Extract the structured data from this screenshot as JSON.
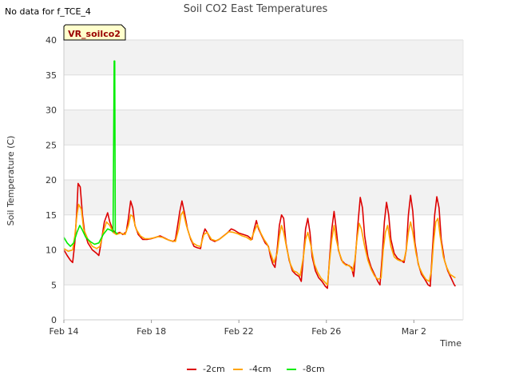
{
  "notice": "No data for f_TCE_4",
  "chart_data": {
    "type": "line",
    "title": "Soil CO2 East Temperatures",
    "xlabel": "Time",
    "ylabel": "Soil Temperature (C)",
    "ylim": [
      0,
      40
    ],
    "xlim": [
      0,
      36.5
    ],
    "yticks": [
      "0",
      "5",
      "10",
      "15",
      "20",
      "25",
      "30",
      "35",
      "40"
    ],
    "xticks": [
      {
        "x": 0,
        "label": "Feb 14"
      },
      {
        "x": 8,
        "label": "Feb 18"
      },
      {
        "x": 16,
        "label": "Feb 22"
      },
      {
        "x": 24,
        "label": "Feb 26"
      },
      {
        "x": 32,
        "label": "Mar 2"
      }
    ],
    "grid": true,
    "banded_background": true,
    "legend_position": "bottom",
    "site_label": "VR_soilco2",
    "series": [
      {
        "name": "-2cm",
        "color": "#dd0000",
        "values": [
          [
            0.0,
            10
          ],
          [
            0.3,
            9.2
          ],
          [
            0.6,
            8.5
          ],
          [
            0.8,
            8.2
          ],
          [
            1.0,
            11
          ],
          [
            1.2,
            16
          ],
          [
            1.3,
            19.5
          ],
          [
            1.5,
            19
          ],
          [
            1.7,
            15
          ],
          [
            1.9,
            12.5
          ],
          [
            2.2,
            11
          ],
          [
            2.6,
            10
          ],
          [
            3.0,
            9.5
          ],
          [
            3.2,
            9.2
          ],
          [
            3.4,
            11
          ],
          [
            3.7,
            14
          ],
          [
            4.0,
            15.3
          ],
          [
            4.2,
            14
          ],
          [
            4.5,
            12.8
          ],
          [
            4.8,
            12.3
          ],
          [
            5.1,
            12.5
          ],
          [
            5.4,
            12.2
          ],
          [
            5.7,
            12.6
          ],
          [
            5.9,
            14.5
          ],
          [
            6.1,
            17
          ],
          [
            6.3,
            16
          ],
          [
            6.5,
            13.5
          ],
          [
            6.8,
            12.2
          ],
          [
            7.2,
            11.5
          ],
          [
            7.6,
            11.5
          ],
          [
            8.0,
            11.6
          ],
          [
            8.4,
            11.8
          ],
          [
            8.8,
            12
          ],
          [
            9.2,
            11.7
          ],
          [
            9.6,
            11.4
          ],
          [
            10.0,
            11.2
          ],
          [
            10.2,
            11.5
          ],
          [
            10.4,
            13.5
          ],
          [
            10.6,
            15.5
          ],
          [
            10.8,
            17
          ],
          [
            11.0,
            15.5
          ],
          [
            11.3,
            13
          ],
          [
            11.6,
            11.5
          ],
          [
            11.9,
            10.5
          ],
          [
            12.2,
            10.3
          ],
          [
            12.5,
            10.2
          ],
          [
            12.7,
            12
          ],
          [
            12.9,
            13
          ],
          [
            13.1,
            12.5
          ],
          [
            13.4,
            11.5
          ],
          [
            13.8,
            11.2
          ],
          [
            14.2,
            11.5
          ],
          [
            14.6,
            12
          ],
          [
            15.0,
            12.5
          ],
          [
            15.3,
            13
          ],
          [
            15.6,
            12.8
          ],
          [
            16.0,
            12.4
          ],
          [
            16.4,
            12.2
          ],
          [
            16.8,
            12
          ],
          [
            17.2,
            11.5
          ],
          [
            17.4,
            13
          ],
          [
            17.6,
            14.2
          ],
          [
            17.8,
            13
          ],
          [
            18.1,
            12
          ],
          [
            18.4,
            11
          ],
          [
            18.7,
            10.5
          ],
          [
            18.9,
            9
          ],
          [
            19.1,
            8
          ],
          [
            19.3,
            7.5
          ],
          [
            19.5,
            10
          ],
          [
            19.7,
            13.5
          ],
          [
            19.9,
            15
          ],
          [
            20.1,
            14.5
          ],
          [
            20.3,
            11
          ],
          [
            20.6,
            8.5
          ],
          [
            20.9,
            7
          ],
          [
            21.2,
            6.5
          ],
          [
            21.5,
            6.2
          ],
          [
            21.7,
            5.5
          ],
          [
            21.9,
            9
          ],
          [
            22.1,
            13
          ],
          [
            22.3,
            14.5
          ],
          [
            22.5,
            12.5
          ],
          [
            22.7,
            9
          ],
          [
            23.0,
            7
          ],
          [
            23.3,
            6
          ],
          [
            23.6,
            5.5
          ],
          [
            23.9,
            4.8
          ],
          [
            24.1,
            4.5
          ],
          [
            24.3,
            9
          ],
          [
            24.5,
            13
          ],
          [
            24.7,
            15.5
          ],
          [
            24.9,
            13
          ],
          [
            25.1,
            10
          ],
          [
            25.4,
            8.5
          ],
          [
            25.7,
            8
          ],
          [
            26.0,
            7.8
          ],
          [
            26.3,
            7.5
          ],
          [
            26.5,
            6.2
          ],
          [
            26.7,
            10
          ],
          [
            26.9,
            14
          ],
          [
            27.1,
            17.5
          ],
          [
            27.3,
            16
          ],
          [
            27.5,
            12
          ],
          [
            27.8,
            9
          ],
          [
            28.1,
            7.5
          ],
          [
            28.4,
            6.5
          ],
          [
            28.7,
            5.5
          ],
          [
            28.9,
            5
          ],
          [
            29.1,
            9
          ],
          [
            29.3,
            14
          ],
          [
            29.5,
            16.8
          ],
          [
            29.7,
            15
          ],
          [
            29.9,
            11.5
          ],
          [
            30.2,
            9.5
          ],
          [
            30.5,
            8.8
          ],
          [
            30.8,
            8.5
          ],
          [
            31.1,
            8.2
          ],
          [
            31.3,
            10
          ],
          [
            31.5,
            15
          ],
          [
            31.7,
            17.8
          ],
          [
            31.9,
            15.5
          ],
          [
            32.1,
            11
          ],
          [
            32.4,
            8
          ],
          [
            32.7,
            6.5
          ],
          [
            33.0,
            5.8
          ],
          [
            33.3,
            5
          ],
          [
            33.5,
            4.8
          ],
          [
            33.7,
            10
          ],
          [
            33.9,
            15
          ],
          [
            34.1,
            17.6
          ],
          [
            34.3,
            16
          ],
          [
            34.5,
            11.5
          ],
          [
            34.8,
            8.5
          ],
          [
            35.1,
            7
          ],
          [
            35.4,
            6
          ],
          [
            35.7,
            5
          ],
          [
            35.8,
            4.8
          ]
        ]
      },
      {
        "name": "-4cm",
        "color": "#ffa500",
        "values": [
          [
            0.0,
            10.2
          ],
          [
            0.4,
            9.8
          ],
          [
            0.8,
            10
          ],
          [
            1.0,
            12
          ],
          [
            1.2,
            15
          ],
          [
            1.35,
            16.5
          ],
          [
            1.6,
            15.8
          ],
          [
            1.8,
            13
          ],
          [
            2.2,
            11.5
          ],
          [
            2.6,
            10.5
          ],
          [
            3.0,
            10.2
          ],
          [
            3.3,
            10.5
          ],
          [
            3.6,
            12.5
          ],
          [
            3.9,
            14
          ],
          [
            4.2,
            13.5
          ],
          [
            4.5,
            12.5
          ],
          [
            4.8,
            12.2
          ],
          [
            5.2,
            12.4
          ],
          [
            5.6,
            12.2
          ],
          [
            5.9,
            13.5
          ],
          [
            6.1,
            15
          ],
          [
            6.3,
            14.8
          ],
          [
            6.6,
            13
          ],
          [
            7.0,
            12
          ],
          [
            7.4,
            11.6
          ],
          [
            7.8,
            11.6
          ],
          [
            8.2,
            11.7
          ],
          [
            8.6,
            11.9
          ],
          [
            9.0,
            11.8
          ],
          [
            9.4,
            11.5
          ],
          [
            9.8,
            11.3
          ],
          [
            10.2,
            11.2
          ],
          [
            10.5,
            13
          ],
          [
            10.7,
            15
          ],
          [
            10.9,
            15.5
          ],
          [
            11.2,
            13.5
          ],
          [
            11.5,
            12
          ],
          [
            11.8,
            11
          ],
          [
            12.2,
            10.6
          ],
          [
            12.5,
            10.5
          ],
          [
            12.8,
            12.2
          ],
          [
            13.1,
            12.5
          ],
          [
            13.5,
            11.5
          ],
          [
            13.9,
            11.3
          ],
          [
            14.3,
            11.6
          ],
          [
            14.7,
            12.1
          ],
          [
            15.1,
            12.6
          ],
          [
            15.5,
            12.5
          ],
          [
            15.9,
            12.3
          ],
          [
            16.3,
            12
          ],
          [
            16.7,
            11.8
          ],
          [
            17.1,
            11.4
          ],
          [
            17.5,
            13
          ],
          [
            17.7,
            13.6
          ],
          [
            18.0,
            12.4
          ],
          [
            18.3,
            11.5
          ],
          [
            18.6,
            10.8
          ],
          [
            18.9,
            9.5
          ],
          [
            19.2,
            8.2
          ],
          [
            19.5,
            9.5
          ],
          [
            19.7,
            12
          ],
          [
            19.9,
            13.5
          ],
          [
            20.1,
            12.5
          ],
          [
            20.4,
            10
          ],
          [
            20.7,
            8
          ],
          [
            21.0,
            7
          ],
          [
            21.3,
            6.8
          ],
          [
            21.6,
            6.3
          ],
          [
            21.9,
            9
          ],
          [
            22.1,
            11.5
          ],
          [
            22.3,
            12.5
          ],
          [
            22.6,
            10.5
          ],
          [
            22.9,
            8
          ],
          [
            23.2,
            6.8
          ],
          [
            23.5,
            6
          ],
          [
            23.8,
            5.5
          ],
          [
            24.1,
            5
          ],
          [
            24.3,
            8.5
          ],
          [
            24.5,
            11.5
          ],
          [
            24.7,
            13.5
          ],
          [
            24.9,
            11.5
          ],
          [
            25.2,
            9.5
          ],
          [
            25.5,
            8.2
          ],
          [
            25.8,
            7.8
          ],
          [
            26.1,
            7.8
          ],
          [
            26.4,
            7
          ],
          [
            26.6,
            8.5
          ],
          [
            26.8,
            11.5
          ],
          [
            27.0,
            13.8
          ],
          [
            27.2,
            13
          ],
          [
            27.5,
            10.5
          ],
          [
            27.8,
            8.5
          ],
          [
            28.1,
            7.2
          ],
          [
            28.4,
            6.3
          ],
          [
            28.7,
            5.8
          ],
          [
            29.0,
            6
          ],
          [
            29.2,
            10
          ],
          [
            29.4,
            12.5
          ],
          [
            29.6,
            13.5
          ],
          [
            29.9,
            10.5
          ],
          [
            30.2,
            9
          ],
          [
            30.5,
            8.6
          ],
          [
            30.8,
            8.4
          ],
          [
            31.1,
            8.5
          ],
          [
            31.3,
            10
          ],
          [
            31.5,
            12.5
          ],
          [
            31.7,
            14
          ],
          [
            31.9,
            12.5
          ],
          [
            32.2,
            9.5
          ],
          [
            32.5,
            7.5
          ],
          [
            32.8,
            6.5
          ],
          [
            33.1,
            5.8
          ],
          [
            33.4,
            5.5
          ],
          [
            33.6,
            7
          ],
          [
            33.8,
            11
          ],
          [
            34.0,
            14
          ],
          [
            34.2,
            14.5
          ],
          [
            34.4,
            12
          ],
          [
            34.7,
            9
          ],
          [
            35.0,
            7.5
          ],
          [
            35.3,
            6.5
          ],
          [
            35.6,
            6.2
          ],
          [
            35.8,
            6
          ]
        ]
      },
      {
        "name": "-8cm",
        "color": "#00ee00",
        "values": [
          [
            0.0,
            11.8
          ],
          [
            0.3,
            11
          ],
          [
            0.6,
            10.5
          ],
          [
            0.9,
            11
          ],
          [
            1.2,
            12.5
          ],
          [
            1.45,
            13.5
          ],
          [
            1.7,
            12.8
          ],
          [
            2.0,
            11.8
          ],
          [
            2.4,
            11.2
          ],
          [
            2.8,
            10.8
          ],
          [
            3.2,
            11
          ],
          [
            3.6,
            12.2
          ],
          [
            4.0,
            13
          ],
          [
            4.3,
            12.8
          ],
          [
            4.5,
            12.6
          ],
          [
            4.6,
            37
          ],
          [
            4.65,
            37
          ],
          [
            4.7,
            12.5
          ],
          [
            4.9,
            12.3
          ]
        ]
      }
    ]
  },
  "legend": {
    "items": [
      {
        "label": "-2cm",
        "color": "#dd0000"
      },
      {
        "label": "-4cm",
        "color": "#ffa500"
      },
      {
        "label": "-8cm",
        "color": "#00ee00"
      }
    ]
  }
}
